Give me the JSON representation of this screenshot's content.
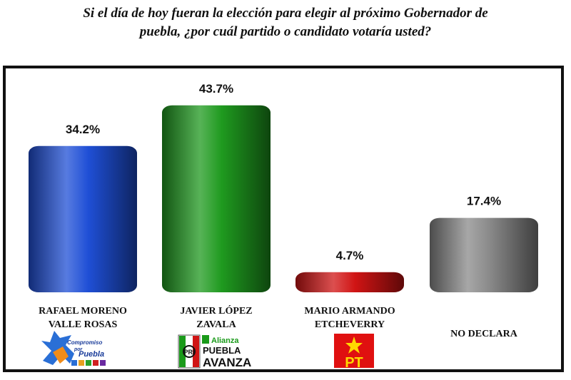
{
  "title": {
    "line1": "Si el día de hoy fueran la elección para elegir al próximo Gobernador de",
    "line2": "puebla, ¿por cuál partido o candidato  votaría usted?"
  },
  "chart_data": {
    "type": "bar",
    "categories": [
      [
        "RAFAEL MORENO",
        "VALLE ROSAS"
      ],
      [
        "JAVIER LÓPEZ",
        "ZAVALA"
      ],
      [
        "MARIO ARMANDO",
        "ETCHEVERRY"
      ],
      [
        "NO DECLARA"
      ]
    ],
    "values": [
      34.2,
      43.7,
      4.7,
      17.4
    ],
    "value_labels": [
      "34.2%",
      "43.7%",
      "4.7%",
      "17.4%"
    ],
    "colors": [
      "#1f4fd6",
      "#1f9a1f",
      "#d01414",
      "#8a8a8a"
    ],
    "ylim": [
      0,
      50
    ],
    "grid": false,
    "legend": "none"
  },
  "logos": {
    "compromiso": {
      "line1": "Compromiso",
      "line2": "por",
      "line3": "Puebla"
    },
    "alianza": {
      "pri": "PRI",
      "line1": "Alianza",
      "line2": "PUEBLA",
      "line3": "AVANZA"
    },
    "pt": {
      "text": "PT"
    }
  }
}
